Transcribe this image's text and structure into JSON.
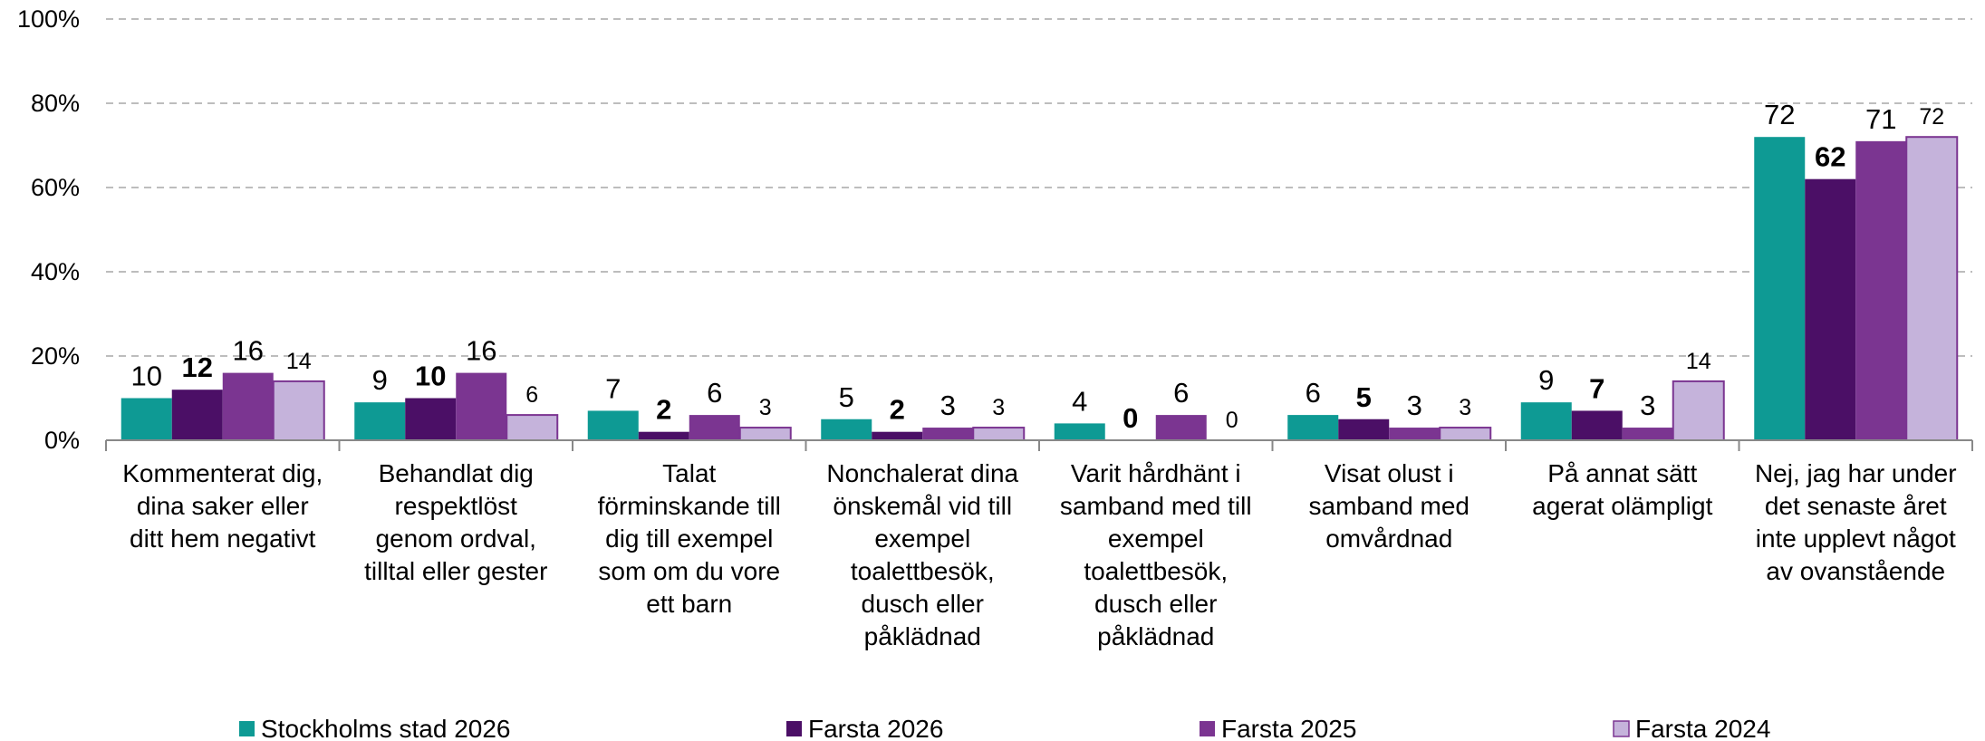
{
  "chart_data": {
    "type": "bar",
    "categories": [
      "Kommenterat dig,\ndina saker eller\nditt hem negativt",
      "Behandlat dig\nrespektlöst\ngenom ordval,\ntilltal eller gester",
      "Talat\nförminskande till\ndig till exempel\nsom om du vore\nett barn",
      "Nonchalerat dina\nönskemål vid till\nexempel\ntoalettbesök,\ndusch eller\npåklädnad",
      "Varit hårdhänt i\nsamband med till\nexempel\ntoalettbesök,\ndusch eller\npåklädnad",
      "Visat olust i\nsamband med\nomvårdnad",
      "På annat sätt\nagerat olämpligt",
      "Nej, jag har under\ndet senaste året\ninte upplevt något\nav ovanstående"
    ],
    "series": [
      {
        "name": "Stockholms stad 2026",
        "color": "#0e9a94",
        "values": [
          10,
          9,
          7,
          5,
          4,
          6,
          9,
          72
        ]
      },
      {
        "name": "Farsta 2026",
        "color": "#4b0f66",
        "values": [
          12,
          10,
          2,
          2,
          0,
          5,
          7,
          62
        ]
      },
      {
        "name": "Farsta 2025",
        "color": "#7b3591",
        "values": [
          16,
          16,
          6,
          3,
          6,
          3,
          3,
          71
        ]
      },
      {
        "name": "Farsta 2024",
        "color": "#c5b3db",
        "values": [
          14,
          6,
          3,
          3,
          0,
          3,
          14,
          72
        ]
      }
    ],
    "ylim": [
      0,
      100
    ],
    "yticks": [
      {
        "value": 0,
        "label": "0%"
      },
      {
        "value": 20,
        "label": "20%"
      },
      {
        "value": 40,
        "label": "40%"
      },
      {
        "value": 60,
        "label": "60%"
      },
      {
        "value": 80,
        "label": "80%"
      },
      {
        "value": 100,
        "label": "100%"
      }
    ],
    "grid": true,
    "legend": "bottom"
  }
}
